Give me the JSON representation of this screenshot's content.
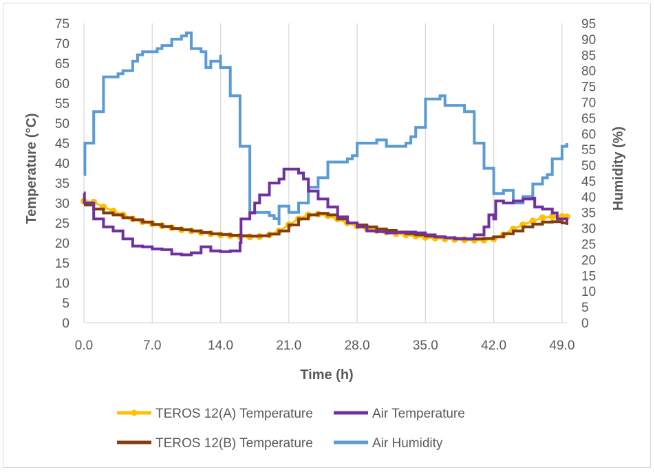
{
  "chart_data": {
    "type": "line",
    "xlabel": "Time (h)",
    "ylabel_left": "Temperature (°C)",
    "ylabel_right": "Humidity (%)",
    "xlim": [
      0,
      49.5
    ],
    "ylim_left": [
      0,
      75
    ],
    "ylim_right": [
      0,
      95
    ],
    "x_ticks": [
      "0.0",
      "7.0",
      "14.0",
      "21.0",
      "28.0",
      "35.0",
      "42.0",
      "49.0"
    ],
    "x_tick_values": [
      0,
      7,
      14,
      21,
      28,
      35,
      42,
      49
    ],
    "y_left_ticks": [
      0,
      5,
      10,
      15,
      20,
      25,
      30,
      35,
      40,
      45,
      50,
      55,
      60,
      65,
      70,
      75
    ],
    "y_right_ticks": [
      0,
      5,
      10,
      15,
      20,
      25,
      30,
      35,
      40,
      45,
      50,
      55,
      60,
      65,
      70,
      75,
      80,
      85,
      90,
      95
    ],
    "gridlines": "vertical",
    "legend_position": "bottom",
    "series": [
      {
        "name": "TEROS 12(A) Temperature",
        "axis": "left",
        "color": "#FFC000",
        "style": "markers",
        "points": [
          [
            0,
            30.5
          ],
          [
            1,
            30.2
          ],
          [
            2,
            29
          ],
          [
            3,
            28
          ],
          [
            4,
            27
          ],
          [
            5,
            26
          ],
          [
            6,
            25.3
          ],
          [
            7,
            24.8
          ],
          [
            8,
            24.3
          ],
          [
            9,
            23.8
          ],
          [
            10,
            23.3
          ],
          [
            11,
            23
          ],
          [
            12,
            22.6
          ],
          [
            13,
            22.3
          ],
          [
            14,
            22
          ],
          [
            15,
            21.8
          ],
          [
            16,
            21.6
          ],
          [
            17,
            21.5
          ],
          [
            18,
            21.6
          ],
          [
            19,
            22
          ],
          [
            20,
            23
          ],
          [
            21,
            24.5
          ],
          [
            22,
            26
          ],
          [
            23,
            27
          ],
          [
            24,
            27.2
          ],
          [
            25,
            26.8
          ],
          [
            26,
            26
          ],
          [
            27,
            25
          ],
          [
            28,
            24.2
          ],
          [
            29,
            23.6
          ],
          [
            30,
            23.1
          ],
          [
            31,
            22.7
          ],
          [
            32,
            22.3
          ],
          [
            33,
            22
          ],
          [
            34,
            21.7
          ],
          [
            35,
            21.4
          ],
          [
            36,
            21.2
          ],
          [
            37,
            21
          ],
          [
            38,
            20.9
          ],
          [
            39,
            20.8
          ],
          [
            40,
            20.7
          ],
          [
            41,
            20.7
          ],
          [
            42,
            21
          ],
          [
            43,
            22
          ],
          [
            44,
            23.5
          ],
          [
            45,
            24.5
          ],
          [
            46,
            25.5
          ],
          [
            47,
            26.3
          ],
          [
            48,
            26.6
          ],
          [
            49,
            26.6
          ],
          [
            49.5,
            26.5
          ]
        ]
      },
      {
        "name": "Air Temperature",
        "axis": "left",
        "color": "#7030A0",
        "style": "step",
        "points": [
          [
            0,
            32.5
          ],
          [
            0.05,
            30
          ],
          [
            1,
            27.5
          ],
          [
            1,
            26
          ],
          [
            2,
            24
          ],
          [
            3,
            23
          ],
          [
            4,
            21
          ],
          [
            5,
            19.2
          ],
          [
            6,
            19
          ],
          [
            7,
            18.5
          ],
          [
            8,
            18.3
          ],
          [
            9,
            17.2
          ],
          [
            10,
            17
          ],
          [
            11,
            17.5
          ],
          [
            12,
            19
          ],
          [
            13,
            18
          ],
          [
            14,
            17.8
          ],
          [
            15,
            18
          ],
          [
            16,
            20
          ],
          [
            16.1,
            26
          ],
          [
            17,
            27.5
          ],
          [
            17.5,
            30
          ],
          [
            18,
            32
          ],
          [
            19,
            35
          ],
          [
            20,
            36
          ],
          [
            20.5,
            38.5
          ],
          [
            22,
            37.5
          ],
          [
            22.5,
            36
          ],
          [
            23,
            33
          ],
          [
            24,
            31
          ],
          [
            25,
            29
          ],
          [
            26,
            26.5
          ],
          [
            27,
            25
          ],
          [
            28,
            24
          ],
          [
            29,
            23
          ],
          [
            30,
            22.8
          ],
          [
            31,
            22.5
          ],
          [
            32,
            22.6
          ],
          [
            33,
            22.7
          ],
          [
            34,
            22.5
          ],
          [
            35,
            22
          ],
          [
            36,
            21.5
          ],
          [
            37,
            21.3
          ],
          [
            38,
            21
          ],
          [
            39,
            21
          ],
          [
            40,
            22
          ],
          [
            41,
            24
          ],
          [
            41.5,
            27
          ],
          [
            42,
            26
          ],
          [
            42.2,
            30.5
          ],
          [
            43,
            30
          ],
          [
            44,
            30.5
          ],
          [
            45,
            31
          ],
          [
            46,
            31.2
          ],
          [
            46.2,
            29
          ],
          [
            47,
            28.5
          ],
          [
            48,
            27.5
          ],
          [
            48.5,
            26
          ],
          [
            49.5,
            25
          ]
        ]
      },
      {
        "name": "TEROS 12(B) Temperature",
        "axis": "left",
        "color": "#843C0C",
        "style": "step",
        "points": [
          [
            0,
            29.5
          ],
          [
            1,
            28.5
          ],
          [
            2,
            27.5
          ],
          [
            3,
            27
          ],
          [
            4,
            26.3
          ],
          [
            5,
            25.8
          ],
          [
            6,
            25.2
          ],
          [
            7,
            24.6
          ],
          [
            8,
            24.1
          ],
          [
            9,
            23.6
          ],
          [
            10,
            23.3
          ],
          [
            11,
            23
          ],
          [
            12,
            22.6
          ],
          [
            13,
            22.3
          ],
          [
            14,
            22.1
          ],
          [
            15,
            21.9
          ],
          [
            16,
            21.8
          ],
          [
            17,
            21.7
          ],
          [
            18,
            21.8
          ],
          [
            19,
            22.2
          ],
          [
            20,
            23
          ],
          [
            21,
            24.5
          ],
          [
            22,
            26
          ],
          [
            23,
            27
          ],
          [
            24,
            27.4
          ],
          [
            25,
            27
          ],
          [
            26,
            26
          ],
          [
            27,
            25
          ],
          [
            28,
            24.5
          ],
          [
            29,
            24
          ],
          [
            30,
            23.5
          ],
          [
            31,
            23.1
          ],
          [
            32,
            22.7
          ],
          [
            33,
            22.3
          ],
          [
            34,
            22
          ],
          [
            35,
            21.7
          ],
          [
            36,
            21.5
          ],
          [
            37,
            21.3
          ],
          [
            38,
            21.1
          ],
          [
            39,
            21
          ],
          [
            40,
            21
          ],
          [
            41,
            21.1
          ],
          [
            42,
            21.5
          ],
          [
            43,
            22.3
          ],
          [
            44,
            23
          ],
          [
            45,
            24
          ],
          [
            46,
            24.7
          ],
          [
            47,
            25.2
          ],
          [
            48,
            25.3
          ],
          [
            49,
            25
          ],
          [
            49.5,
            24.5
          ]
        ]
      },
      {
        "name": "Air Humidity",
        "axis": "right",
        "color": "#5B9BD5",
        "style": "step",
        "points": [
          [
            0,
            47
          ],
          [
            0.1,
            57
          ],
          [
            1,
            57
          ],
          [
            1,
            67
          ],
          [
            2,
            68
          ],
          [
            2,
            78
          ],
          [
            3,
            78
          ],
          [
            3.5,
            79
          ],
          [
            4,
            80
          ],
          [
            5,
            83
          ],
          [
            5.5,
            85
          ],
          [
            6,
            86
          ],
          [
            7,
            86
          ],
          [
            7.5,
            87
          ],
          [
            8,
            88
          ],
          [
            9,
            90
          ],
          [
            10,
            91
          ],
          [
            10.5,
            92
          ],
          [
            11,
            92
          ],
          [
            11,
            87
          ],
          [
            12,
            86
          ],
          [
            12.5,
            81
          ],
          [
            13,
            83
          ],
          [
            14,
            85
          ],
          [
            14,
            81
          ],
          [
            15,
            80
          ],
          [
            15,
            72
          ],
          [
            16,
            72
          ],
          [
            16,
            56
          ],
          [
            17,
            55
          ],
          [
            17,
            35
          ],
          [
            18,
            35
          ],
          [
            19,
            34
          ],
          [
            19.5,
            33
          ],
          [
            20,
            31
          ],
          [
            20,
            37
          ],
          [
            21,
            36
          ],
          [
            21,
            35
          ],
          [
            22,
            35
          ],
          [
            22,
            38
          ],
          [
            23,
            38
          ],
          [
            23,
            43
          ],
          [
            24,
            44
          ],
          [
            24,
            46
          ],
          [
            25,
            46
          ],
          [
            25,
            51
          ],
          [
            26,
            51
          ],
          [
            27,
            52
          ],
          [
            27.5,
            53
          ],
          [
            28,
            57
          ],
          [
            29,
            57
          ],
          [
            30,
            58
          ],
          [
            31,
            58
          ],
          [
            31,
            56
          ],
          [
            32,
            56
          ],
          [
            33,
            57
          ],
          [
            33.5,
            59
          ],
          [
            34,
            59
          ],
          [
            34,
            62
          ],
          [
            35,
            62
          ],
          [
            35,
            71
          ],
          [
            36,
            71
          ],
          [
            36.5,
            72
          ],
          [
            37,
            69
          ],
          [
            38,
            69
          ],
          [
            39,
            67
          ],
          [
            40,
            66
          ],
          [
            40,
            57
          ],
          [
            41,
            57
          ],
          [
            41,
            49
          ],
          [
            42,
            49
          ],
          [
            42,
            41
          ],
          [
            43,
            42
          ],
          [
            44,
            42
          ],
          [
            44,
            38
          ],
          [
            45,
            40
          ],
          [
            46,
            41
          ],
          [
            46,
            44
          ],
          [
            47,
            46
          ],
          [
            47.5,
            47
          ],
          [
            48,
            52
          ],
          [
            49,
            54
          ],
          [
            49,
            56
          ],
          [
            49.5,
            57
          ]
        ]
      }
    ]
  },
  "legend": [
    {
      "label": "TEROS 12(A) Temperature",
      "color": "#FFC000",
      "marker": true
    },
    {
      "label": "Air Temperature",
      "color": "#7030A0",
      "marker": false
    },
    {
      "label": "TEROS 12(B) Temperature",
      "color": "#843C0C",
      "marker": false
    },
    {
      "label": "Air Humidity",
      "color": "#5B9BD5",
      "marker": false
    }
  ]
}
